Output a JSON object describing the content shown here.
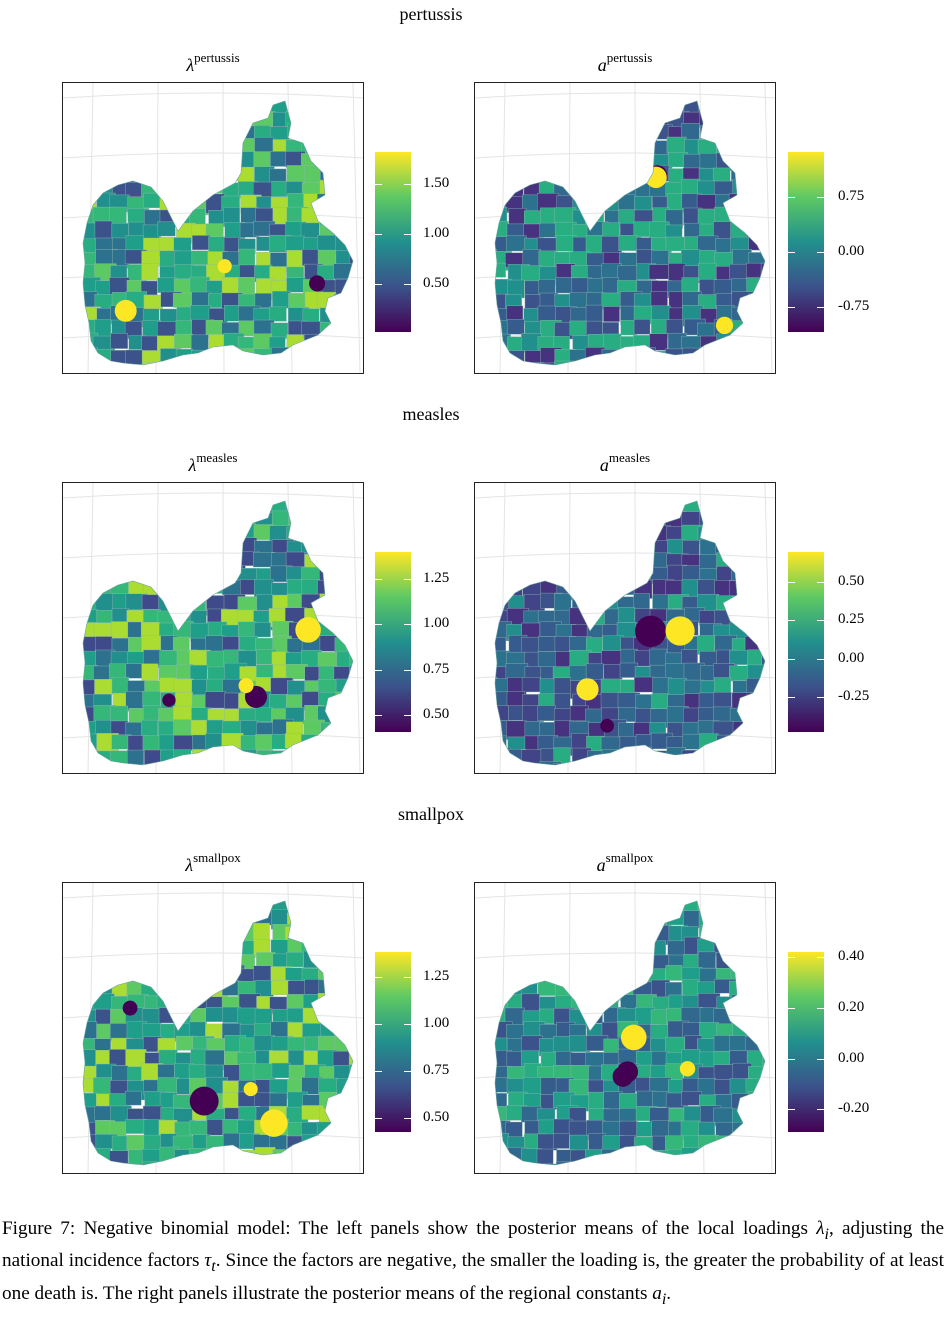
{
  "sections": [
    {
      "name": "pertussis",
      "left": {
        "symbol": "λ",
        "sup": "pertussis",
        "ticks": [
          "1.50",
          "1.00",
          "0.50"
        ]
      },
      "right": {
        "symbol": "a",
        "sup": "pertussis",
        "ticks": [
          "0.75",
          "0.00",
          "-0.75"
        ]
      }
    },
    {
      "name": "measles",
      "left": {
        "symbol": "λ",
        "sup": "measles",
        "ticks": [
          "1.25",
          "1.00",
          "0.75",
          "0.50"
        ]
      },
      "right": {
        "symbol": "a",
        "sup": "measles",
        "ticks": [
          "0.50",
          "0.25",
          "0.00",
          "-0.25"
        ]
      }
    },
    {
      "name": "smallpox",
      "left": {
        "symbol": "λ",
        "sup": "smallpox",
        "ticks": [
          "1.25",
          "1.00",
          "0.75",
          "0.50"
        ]
      },
      "right": {
        "symbol": "a",
        "sup": "smallpox",
        "ticks": [
          "0.40",
          "0.20",
          "0.00",
          "-0.20"
        ]
      }
    }
  ],
  "colorscale": {
    "low": "#440154",
    "mid": "#21908d",
    "high": "#fde725"
  },
  "caption": {
    "p1": "Figure 7: Negative binomial model: The left panels show the posterior means of the local loadings ",
    "lambda_i": "λ",
    "sub_i": "i",
    "p2": ", adjusting the national incidence factors ",
    "tau_t": "τ",
    "sub_t": "t",
    "p3": ". Since the factors are negative, the smaller the loading is, the greater the probability of at least one death is. The right panels illustrate the posterior means of the regional constants ",
    "a_i": "a",
    "sub_i2": "i",
    "p4": "."
  }
}
